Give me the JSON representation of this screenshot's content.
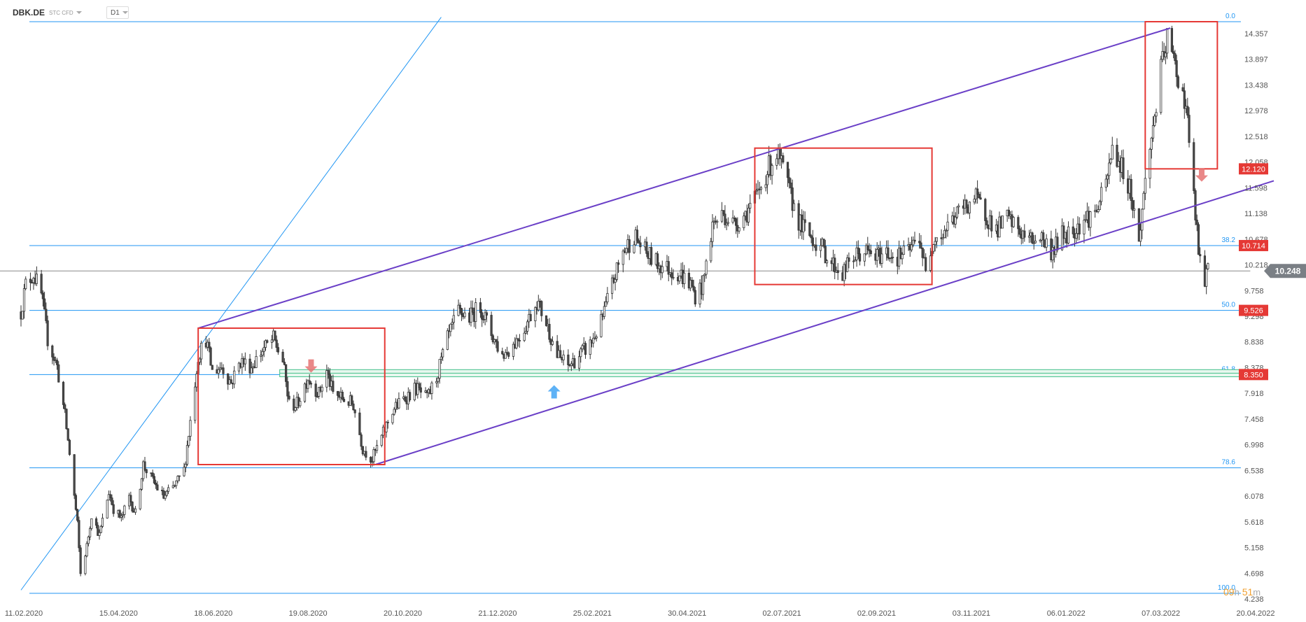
{
  "header": {
    "symbol": "DBK.DE",
    "instrument_type": "STC CFD",
    "timeframe": "D1"
  },
  "timer": {
    "hours": "09",
    "h_unit": "h",
    "minutes": "51",
    "m_unit": "m"
  },
  "colors": {
    "fib_line": "#2196f3",
    "channel": "#6a3fc7",
    "box": "#e53935",
    "zone": "#43c08a",
    "candle_up": "#ffffff",
    "candle_down": "#4a4a4a",
    "current_price_line": "#888888"
  },
  "chart_data": {
    "type": "candlestick",
    "instrument": "DBK.DE",
    "timeframe": "D1",
    "x_axis": {
      "start": "2020-02-11",
      "end": "2022-04-20",
      "tick_labels": [
        "11.02.2020",
        "15.04.2020",
        "18.06.2020",
        "19.08.2020",
        "20.10.2020",
        "21.12.2020",
        "25.02.2021",
        "30.04.2021",
        "02.07.2021",
        "02.09.2021",
        "03.11.2021",
        "06.01.2022",
        "07.03.2022",
        "20.04.2022"
      ]
    },
    "y_axis": {
      "range": [
        4.238,
        14.817
      ],
      "tick_labels": [
        "14.357",
        "13.897",
        "13.438",
        "12.978",
        "12.518",
        "12.058",
        "11.598",
        "11.138",
        "10.678",
        "10.218",
        "9.758",
        "9.298",
        "8.838",
        "8.378",
        "7.918",
        "7.458",
        "6.998",
        "6.538",
        "6.078",
        "5.618",
        "5.158",
        "4.698",
        "4.238"
      ]
    },
    "current_price": "10.248",
    "price_path": [
      [
        "2020-02-11",
        9.5
      ],
      [
        "2020-02-14",
        10.0
      ],
      [
        "2020-02-19",
        10.2
      ],
      [
        "2020-02-24",
        9.8
      ],
      [
        "2020-02-28",
        9.0
      ],
      [
        "2020-03-05",
        8.5
      ],
      [
        "2020-03-10",
        7.6
      ],
      [
        "2020-03-13",
        6.9
      ],
      [
        "2020-03-18",
        5.6
      ],
      [
        "2020-03-20",
        4.7
      ],
      [
        "2020-03-24",
        5.2
      ],
      [
        "2020-03-27",
        5.8
      ],
      [
        "2020-04-01",
        5.4
      ],
      [
        "2020-04-07",
        6.2
      ],
      [
        "2020-04-10",
        5.9
      ],
      [
        "2020-04-15",
        5.7
      ],
      [
        "2020-04-20",
        6.1
      ],
      [
        "2020-04-24",
        5.8
      ],
      [
        "2020-04-29",
        6.7
      ],
      [
        "2020-05-05",
        6.4
      ],
      [
        "2020-05-12",
        6.1
      ],
      [
        "2020-05-19",
        6.3
      ],
      [
        "2020-05-25",
        6.6
      ],
      [
        "2020-05-29",
        7.5
      ],
      [
        "2020-06-03",
        8.7
      ],
      [
        "2020-06-08",
        9.0
      ],
      [
        "2020-06-12",
        8.4
      ],
      [
        "2020-06-18",
        8.5
      ],
      [
        "2020-06-24",
        8.2
      ],
      [
        "2020-06-30",
        8.6
      ],
      [
        "2020-07-07",
        8.5
      ],
      [
        "2020-07-14",
        8.8
      ],
      [
        "2020-07-21",
        9.0
      ],
      [
        "2020-07-27",
        8.6
      ],
      [
        "2020-07-31",
        7.8
      ],
      [
        "2020-08-05",
        7.8
      ],
      [
        "2020-08-12",
        8.3
      ],
      [
        "2020-08-19",
        8.0
      ],
      [
        "2020-08-24",
        8.4
      ],
      [
        "2020-08-28",
        8.0
      ],
      [
        "2020-09-04",
        7.9
      ],
      [
        "2020-09-10",
        7.8
      ],
      [
        "2020-09-16",
        7.0
      ],
      [
        "2020-09-22",
        6.8
      ],
      [
        "2020-09-28",
        7.2
      ],
      [
        "2020-10-05",
        7.7
      ],
      [
        "2020-10-12",
        7.9
      ],
      [
        "2020-10-20",
        8.1
      ],
      [
        "2020-10-27",
        7.9
      ],
      [
        "2020-11-02",
        8.3
      ],
      [
        "2020-11-09",
        9.0
      ],
      [
        "2020-11-16",
        9.5
      ],
      [
        "2020-11-23",
        9.4
      ],
      [
        "2020-11-30",
        9.6
      ],
      [
        "2020-12-07",
        9.1
      ],
      [
        "2020-12-14",
        8.7
      ],
      [
        "2020-12-21",
        8.9
      ],
      [
        "2020-12-28",
        9.2
      ],
      [
        "2021-01-05",
        9.7
      ],
      [
        "2021-01-11",
        9.3
      ],
      [
        "2021-01-18",
        8.7
      ],
      [
        "2021-01-25",
        8.5
      ],
      [
        "2021-02-01",
        8.7
      ],
      [
        "2021-02-08",
        8.9
      ],
      [
        "2021-02-15",
        9.3
      ],
      [
        "2021-02-22",
        10.0
      ],
      [
        "2021-03-01",
        10.6
      ],
      [
        "2021-03-08",
        10.9
      ],
      [
        "2021-03-15",
        10.6
      ],
      [
        "2021-03-22",
        10.4
      ],
      [
        "2021-03-29",
        10.3
      ],
      [
        "2021-04-06",
        10.2
      ],
      [
        "2021-04-13",
        10.0
      ],
      [
        "2021-04-16",
        9.8
      ],
      [
        "2021-04-21",
        10.0
      ],
      [
        "2021-04-27",
        11.1
      ],
      [
        "2021-05-04",
        11.3
      ],
      [
        "2021-05-11",
        11.1
      ],
      [
        "2021-05-18",
        11.3
      ],
      [
        "2021-05-25",
        11.6
      ],
      [
        "2021-06-01",
        12.1
      ],
      [
        "2021-06-07",
        12.4
      ],
      [
        "2021-06-11",
        12.1
      ],
      [
        "2021-06-16",
        11.6
      ],
      [
        "2021-06-22",
        11.1
      ],
      [
        "2021-06-28",
        10.9
      ],
      [
        "2021-07-05",
        10.7
      ],
      [
        "2021-07-12",
        10.4
      ],
      [
        "2021-07-19",
        10.2
      ],
      [
        "2021-07-26",
        10.5
      ],
      [
        "2021-08-02",
        10.6
      ],
      [
        "2021-08-09",
        10.5
      ],
      [
        "2021-08-16",
        10.6
      ],
      [
        "2021-08-23",
        10.5
      ],
      [
        "2021-08-30",
        10.6
      ],
      [
        "2021-09-06",
        10.9
      ],
      [
        "2021-09-10",
        10.2
      ],
      [
        "2021-09-15",
        10.9
      ],
      [
        "2021-09-20",
        10.9
      ],
      [
        "2021-09-27",
        11.2
      ],
      [
        "2021-10-04",
        11.4
      ],
      [
        "2021-10-11",
        11.6
      ],
      [
        "2021-10-18",
        11.3
      ],
      [
        "2021-10-25",
        11.0
      ],
      [
        "2021-11-01",
        11.2
      ],
      [
        "2021-11-08",
        11.0
      ],
      [
        "2021-11-15",
        10.8
      ],
      [
        "2021-11-22",
        10.9
      ],
      [
        "2021-11-29",
        10.6
      ],
      [
        "2021-12-06",
        10.9
      ],
      [
        "2021-12-13",
        11.0
      ],
      [
        "2021-12-20",
        11.2
      ],
      [
        "2021-12-27",
        11.3
      ],
      [
        "2022-01-03",
        11.8
      ],
      [
        "2022-01-07",
        12.5
      ],
      [
        "2022-01-12",
        12.2
      ],
      [
        "2022-01-18",
        11.8
      ],
      [
        "2022-01-24",
        10.8
      ],
      [
        "2022-01-28",
        11.9
      ],
      [
        "2022-02-02",
        12.9
      ],
      [
        "2022-02-07",
        13.9
      ],
      [
        "2022-02-11",
        14.5
      ],
      [
        "2022-02-15",
        14.1
      ],
      [
        "2022-02-18",
        13.8
      ],
      [
        "2022-02-23",
        13.3
      ],
      [
        "2022-02-25",
        12.6
      ],
      [
        "2022-02-28",
        11.6
      ],
      [
        "2022-03-03",
        10.6
      ],
      [
        "2022-03-07",
        10.0
      ],
      [
        "2022-03-09",
        10.25
      ]
    ],
    "fibonacci": {
      "levels": [
        {
          "label": "0.0",
          "price": 14.817
        },
        {
          "label": "38.2",
          "price": 10.714
        },
        {
          "label": "50.0",
          "price": 9.526
        },
        {
          "label": "61.8",
          "price": 8.35
        },
        {
          "label": "78.6",
          "price": 6.64
        },
        {
          "label": "100.0",
          "price": 4.34
        }
      ],
      "price_tags": [
        "12.120",
        "10.714",
        "9.526",
        "8.350"
      ]
    },
    "channel": {
      "upper": [
        [
          "2020-06-03",
          9.2
        ],
        [
          "2022-02-13",
          14.7
        ]
      ],
      "lower": [
        [
          "2020-09-24",
          6.7
        ],
        [
          "2022-04-20",
          11.9
        ]
      ]
    },
    "trendline": [
      [
        "2020-02-11",
        4.4
      ],
      [
        "2020-11-05",
        14.9
      ]
    ],
    "boxes": [
      {
        "from": "2020-06-03",
        "to": "2020-09-30",
        "top": 9.2,
        "bottom": 6.7
      },
      {
        "from": "2021-05-24",
        "to": "2021-09-14",
        "top": 12.5,
        "bottom": 10.0
      },
      {
        "from": "2022-01-28",
        "to": "2022-03-15",
        "top": 14.817,
        "bottom": 12.12
      }
    ],
    "support_zone": {
      "from": "2020-07-25",
      "to": "2022-03-30",
      "top": 8.44,
      "bottom": 8.31
    },
    "arrows": [
      {
        "date": "2020-08-14",
        "price": 8.5,
        "direction": "down",
        "color": "#e57373"
      },
      {
        "date": "2021-01-16",
        "price": 8.04,
        "direction": "up",
        "color": "#42a5f5"
      },
      {
        "date": "2022-03-05",
        "price": 12.0,
        "direction": "down",
        "color": "#e57373"
      }
    ]
  }
}
